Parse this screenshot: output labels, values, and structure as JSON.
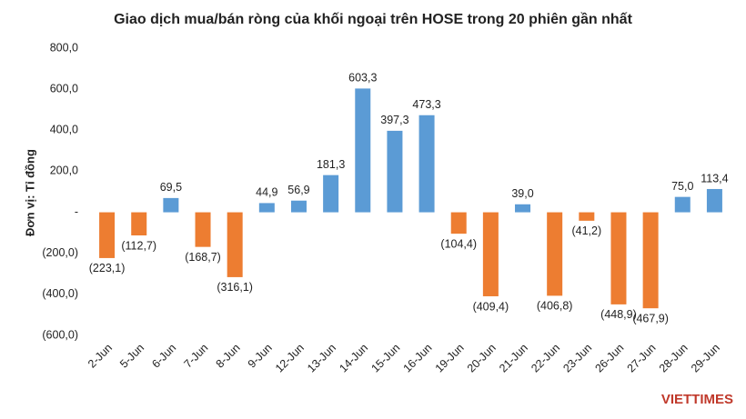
{
  "chart_data": {
    "type": "bar",
    "title": "Giao dịch mua/bán ròng của khối ngoại trên HOSE trong 20 phiên gần nhất",
    "y_label": "Đơn vị: Tỉ đồng",
    "watermark": "VIETTIMES",
    "categories": [
      "2-Jun",
      "5-Jun",
      "6-Jun",
      "7-Jun",
      "8-Jun",
      "9-Jun",
      "12-Jun",
      "13-Jun",
      "14-Jun",
      "15-Jun",
      "16-Jun",
      "19-Jun",
      "20-Jun",
      "21-Jun",
      "22-Jun",
      "23-Jun",
      "26-Jun",
      "27-Jun",
      "28-Jun",
      "29-Jun"
    ],
    "values": [
      -223.1,
      -112.7,
      69.5,
      -168.7,
      -316.1,
      44.9,
      56.9,
      181.3,
      603.3,
      397.3,
      473.3,
      -104.4,
      -409.4,
      39.0,
      -406.8,
      -41.2,
      -448.9,
      -467.9,
      75.0,
      113.4
    ],
    "value_labels": [
      "(223,1)",
      "(112,7)",
      "69,5",
      "(168,7)",
      "(316,1)",
      "44,9",
      "56,9",
      "181,3",
      "603,3",
      "397,3",
      "473,3",
      "(104,4)",
      "(409,4)",
      "39,0",
      "(406,8)",
      "(41,2)",
      "(448,9)",
      "(467,9)",
      "75,0",
      "113,4"
    ],
    "colors": {
      "positive": "#5b9bd5",
      "negative": "#ed7d31"
    },
    "ylim": [
      -600,
      800
    ],
    "yticks": [
      {
        "value": -600,
        "label": "(600,0)"
      },
      {
        "value": -400,
        "label": "(400,0)"
      },
      {
        "value": -200,
        "label": "(200,0)"
      },
      {
        "value": 0,
        "label": "-"
      },
      {
        "value": 200,
        "label": "200,0"
      },
      {
        "value": 400,
        "label": "400,0"
      },
      {
        "value": 600,
        "label": "600,0"
      },
      {
        "value": 800,
        "label": "800,0"
      }
    ],
    "grid": false
  }
}
